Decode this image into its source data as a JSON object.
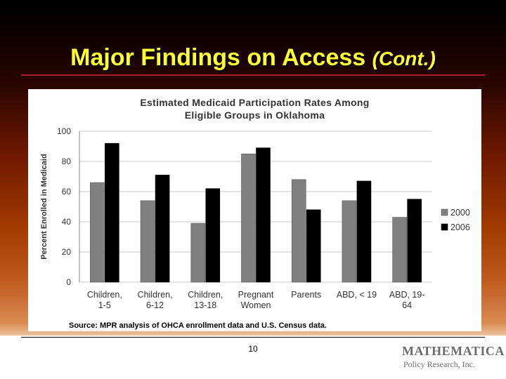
{
  "slide": {
    "title": "Major Findings on Access",
    "title_suffix": "(Cont.)",
    "page_number": "10",
    "logo_main": "MATHEMATICA",
    "logo_sub": "Policy Research, Inc."
  },
  "chart_data": {
    "type": "bar",
    "title_lines": [
      "Estimated Medicaid Participation Rates Among",
      "Eligible Groups in Oklahoma"
    ],
    "ylabel": "Percent Enrolled in Medicaid",
    "xlabel": "",
    "ylim": [
      0,
      100
    ],
    "yticks": [
      0,
      20,
      40,
      60,
      80,
      100
    ],
    "grid": true,
    "legend_position": "right",
    "categories": [
      [
        "Children,",
        "1-5"
      ],
      [
        "Children,",
        "6-12"
      ],
      [
        "Children,",
        "13-18"
      ],
      [
        "Pregnant",
        "Women"
      ],
      [
        "Parents"
      ],
      [
        "ABD, < 19"
      ],
      [
        "ABD, 19-",
        "64"
      ]
    ],
    "series": [
      {
        "name": "2000",
        "color": "#808080",
        "values": [
          66,
          54,
          39,
          85,
          68,
          54,
          43
        ]
      },
      {
        "name": "2006",
        "color": "#000000",
        "values": [
          92,
          71,
          62,
          89,
          48,
          67,
          55
        ]
      }
    ],
    "source": "Source: MPR analysis of OHCA enrollment data and U.S. Census data."
  }
}
